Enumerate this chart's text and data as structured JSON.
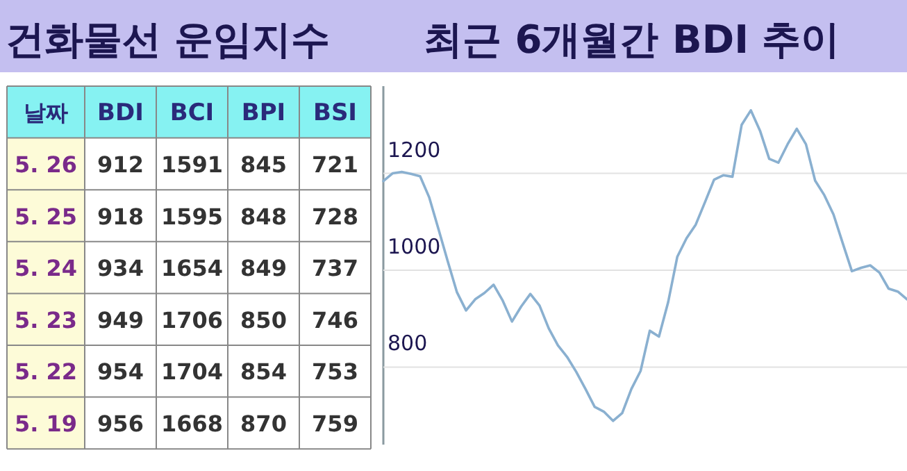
{
  "chart_data": [
    {
      "type": "other",
      "title": "건화물선 운임지수",
      "xlabel": "날짜",
      "categories": [
        "5. 26",
        "5. 25",
        "5. 24",
        "5. 23",
        "5. 22",
        "5. 19"
      ],
      "data_labels": true,
      "series": [
        {
          "name": "BDI",
          "values": [
            912,
            918,
            934,
            949,
            954,
            956
          ]
        },
        {
          "name": "BCI",
          "values": [
            1591,
            1595,
            1654,
            1706,
            1704,
            1668
          ]
        },
        {
          "name": "BPI",
          "values": [
            845,
            848,
            849,
            850,
            854,
            870
          ]
        },
        {
          "name": "BSI",
          "values": [
            721,
            728,
            737,
            746,
            753,
            759
          ]
        }
      ]
    },
    {
      "type": "line",
      "title": "최근 6개월간 BDI 추이",
      "color": "#8ab0d0",
      "grid": "y",
      "tick_labels": "y",
      "ylim": [
        640,
        1380
      ],
      "yticks": [
        800,
        1000,
        1200
      ],
      "categories": [
        null,
        null,
        null,
        null,
        null,
        null,
        null,
        null,
        null,
        null,
        null,
        null,
        null,
        null,
        null,
        null,
        null,
        null,
        null,
        null,
        null,
        null,
        null,
        null,
        null,
        null,
        null,
        null,
        null,
        null,
        null,
        null,
        null,
        null,
        null,
        null,
        null,
        null,
        null,
        null,
        null,
        null,
        null,
        null,
        null,
        null,
        null,
        null,
        null,
        null,
        null,
        null,
        null,
        null,
        null,
        null,
        null,
        null
      ],
      "values": [
        1184,
        1200,
        1203,
        1199,
        1194,
        1150,
        1085,
        1019,
        955,
        917,
        940,
        953,
        970,
        937,
        894,
        925,
        951,
        927,
        880,
        845,
        821,
        790,
        755,
        718,
        708,
        689,
        705,
        755,
        792,
        875,
        863,
        934,
        1028,
        1066,
        1094,
        1140,
        1187,
        1196,
        1193,
        1300,
        1330,
        1288,
        1230,
        1222,
        1260,
        1292,
        1260,
        1185,
        1155,
        1115,
        1056,
        998,
        1005,
        1010,
        995,
        962,
        956,
        940
      ]
    }
  ]
}
